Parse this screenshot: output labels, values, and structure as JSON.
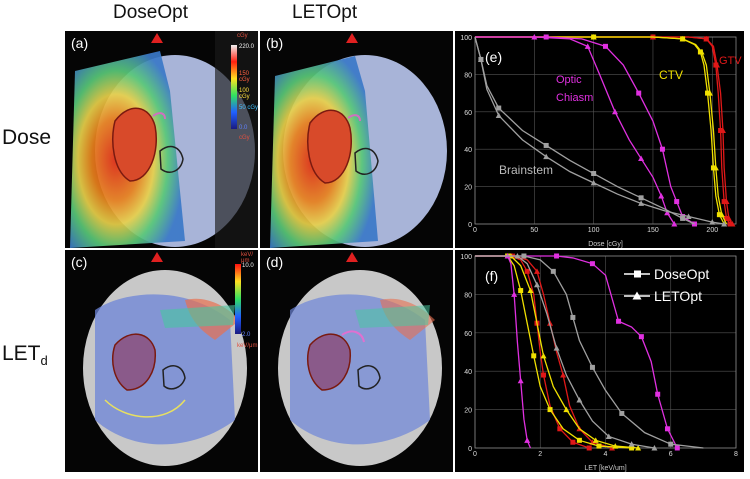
{
  "headers": {
    "col1": "DoseOpt",
    "col2": "LETOpt"
  },
  "rows": {
    "dose": "Dose",
    "let_main": "LET",
    "let_sub": "d"
  },
  "panels": {
    "a": "(a)",
    "b": "(b)",
    "c": "(c)",
    "d": "(d)",
    "e": "(e)",
    "f": "(f)"
  },
  "dose_colorbar": {
    "unit": "cGy",
    "max": "220.0",
    "t1": "150 cGy",
    "t2": "100 cGy",
    "t3": "50 cGy",
    "min": "0.0",
    "under": "cGy"
  },
  "let_colorbar": {
    "unit": "keV/μm",
    "max": "10.0",
    "min": "2.0",
    "under": "keV/μm"
  },
  "colors": {
    "gtv": "#e01818",
    "ctv": "#f0e000",
    "optic": "#e030e0",
    "brainstem": "#a0a0a0"
  },
  "chart_data": [
    {
      "type": "line",
      "panel": "(e)",
      "xlabel": "Dose [cGy]",
      "ylabel": "",
      "xlim": [
        0,
        220
      ],
      "ylim": [
        0,
        100
      ],
      "xticks": [
        0,
        50,
        100,
        150,
        200
      ],
      "yticks": [
        0,
        20,
        40,
        60,
        80,
        100
      ],
      "grid": true,
      "annotations": [
        "GTV",
        "CTV",
        "Optic",
        "Chiasm",
        "Brainstem"
      ],
      "series": [
        {
          "name": "GTV",
          "color": "#e01818",
          "marker": "square",
          "x": [
            0,
            150,
            180,
            195,
            200,
            203,
            205,
            207,
            208,
            210,
            212,
            215
          ],
          "y": [
            100,
            100,
            100,
            99,
            95,
            85,
            70,
            50,
            30,
            12,
            3,
            0
          ]
        },
        {
          "name": "GTV",
          "color": "#e01818",
          "marker": "triangle",
          "x": [
            0,
            150,
            180,
            195,
            201,
            204,
            207,
            209,
            210,
            212,
            214,
            217
          ],
          "y": [
            100,
            100,
            100,
            99,
            95,
            85,
            70,
            50,
            30,
            12,
            3,
            0
          ]
        },
        {
          "name": "CTV",
          "color": "#f0e000",
          "marker": "square",
          "x": [
            0,
            100,
            150,
            175,
            185,
            190,
            193,
            196,
            199,
            201,
            203,
            206,
            210
          ],
          "y": [
            100,
            100,
            100,
            99,
            96,
            92,
            85,
            70,
            50,
            30,
            15,
            5,
            0
          ]
        },
        {
          "name": "CTV",
          "color": "#f0e000",
          "marker": "triangle",
          "x": [
            0,
            100,
            150,
            175,
            186,
            191,
            195,
            198,
            201,
            203,
            205,
            208,
            212
          ],
          "y": [
            100,
            100,
            100,
            99,
            96,
            92,
            85,
            70,
            50,
            30,
            15,
            5,
            0
          ]
        },
        {
          "name": "Optic Chiasm",
          "color": "#e030e0",
          "marker": "square",
          "x": [
            0,
            60,
            90,
            110,
            125,
            138,
            150,
            158,
            165,
            170,
            175,
            185
          ],
          "y": [
            100,
            100,
            99,
            95,
            85,
            70,
            55,
            40,
            20,
            12,
            4,
            0
          ]
        },
        {
          "name": "Optic Chiasm",
          "color": "#e030e0",
          "marker": "triangle",
          "x": [
            0,
            50,
            80,
            95,
            105,
            118,
            130,
            140,
            150,
            157,
            162,
            168
          ],
          "y": [
            100,
            100,
            99,
            95,
            80,
            60,
            45,
            35,
            25,
            15,
            6,
            0
          ]
        },
        {
          "name": "Brainstem",
          "color": "#a0a0a0",
          "marker": "square",
          "x": [
            0,
            5,
            10,
            20,
            40,
            60,
            80,
            100,
            120,
            140,
            160,
            175,
            185
          ],
          "y": [
            100,
            88,
            74,
            62,
            50,
            42,
            34,
            27,
            20,
            14,
            8,
            3,
            0
          ]
        },
        {
          "name": "Brainstem",
          "color": "#a0a0a0",
          "marker": "triangle",
          "x": [
            0,
            5,
            10,
            20,
            40,
            60,
            80,
            100,
            120,
            140,
            160,
            180,
            200,
            210
          ],
          "y": [
            100,
            88,
            72,
            58,
            45,
            36,
            28,
            22,
            16,
            11,
            7,
            4,
            1,
            0
          ]
        }
      ]
    },
    {
      "type": "line",
      "panel": "(f)",
      "xlabel": "LET [keV/um]",
      "ylabel": "",
      "xlim": [
        0,
        8
      ],
      "ylim": [
        0,
        100
      ],
      "xticks": [
        0,
        2,
        4,
        6,
        8
      ],
      "yticks": [
        0,
        20,
        40,
        60,
        80,
        100
      ],
      "grid": true,
      "legend": {
        "position": "top-right",
        "entries": [
          {
            "label": "DoseOpt",
            "marker": "square"
          },
          {
            "label": "LETOpt",
            "marker": "triangle"
          }
        ]
      },
      "series": [
        {
          "name": "GTV",
          "color": "#e01818",
          "marker": "square",
          "x": [
            0,
            1.1,
            1.4,
            1.6,
            1.8,
            1.9,
            2.0,
            2.1,
            2.3,
            2.6,
            3.0,
            3.5
          ],
          "y": [
            100,
            100,
            98,
            92,
            80,
            65,
            50,
            38,
            22,
            10,
            3,
            0
          ]
        },
        {
          "name": "GTV",
          "color": "#e01818",
          "marker": "triangle",
          "x": [
            0,
            1.2,
            1.6,
            1.9,
            2.1,
            2.3,
            2.5,
            2.7,
            2.9,
            3.2,
            3.6,
            4.2
          ],
          "y": [
            100,
            100,
            98,
            92,
            80,
            65,
            50,
            38,
            22,
            10,
            3,
            0
          ]
        },
        {
          "name": "CTV",
          "color": "#f0e000",
          "marker": "square",
          "x": [
            0,
            1.0,
            1.2,
            1.4,
            1.6,
            1.8,
            2.0,
            2.3,
            2.7,
            3.2,
            3.8,
            4.8
          ],
          "y": [
            100,
            100,
            95,
            82,
            65,
            48,
            32,
            20,
            10,
            4,
            1,
            0
          ]
        },
        {
          "name": "CTV",
          "color": "#f0e000",
          "marker": "triangle",
          "x": [
            0,
            1.1,
            1.4,
            1.7,
            1.9,
            2.1,
            2.4,
            2.8,
            3.2,
            3.7,
            4.3,
            5.0
          ],
          "y": [
            100,
            100,
            95,
            82,
            65,
            48,
            32,
            20,
            10,
            4,
            1,
            0
          ]
        },
        {
          "name": "Optic Chiasm",
          "color": "#e030e0",
          "marker": "square",
          "x": [
            0,
            2.5,
            3.0,
            3.6,
            4.0,
            4.4,
            4.8,
            5.1,
            5.4,
            5.6,
            5.9,
            6.2
          ],
          "y": [
            100,
            100,
            99,
            96,
            90,
            66,
            63,
            58,
            45,
            28,
            10,
            0
          ]
        },
        {
          "name": "Optic Chiasm",
          "color": "#e030e0",
          "marker": "triangle",
          "x": [
            0,
            1.0,
            1.1,
            1.2,
            1.3,
            1.4,
            1.5,
            1.6,
            1.7
          ],
          "y": [
            100,
            100,
            96,
            80,
            55,
            35,
            15,
            4,
            0
          ]
        },
        {
          "name": "Brainstem",
          "color": "#a0a0a0",
          "marker": "square",
          "x": [
            0,
            1.5,
            2.0,
            2.4,
            2.8,
            3.0,
            3.2,
            3.6,
            4.0,
            4.5,
            5.2,
            6.0,
            7.0
          ],
          "y": [
            100,
            100,
            98,
            92,
            80,
            68,
            56,
            42,
            30,
            18,
            8,
            2,
            0
          ]
        },
        {
          "name": "Brainstem",
          "color": "#a0a0a0",
          "marker": "triangle",
          "x": [
            0,
            1.3,
            1.6,
            1.9,
            2.2,
            2.5,
            2.8,
            3.2,
            3.6,
            4.1,
            4.8,
            5.5
          ],
          "y": [
            100,
            100,
            96,
            85,
            70,
            52,
            38,
            25,
            14,
            6,
            2,
            0
          ]
        }
      ]
    }
  ]
}
